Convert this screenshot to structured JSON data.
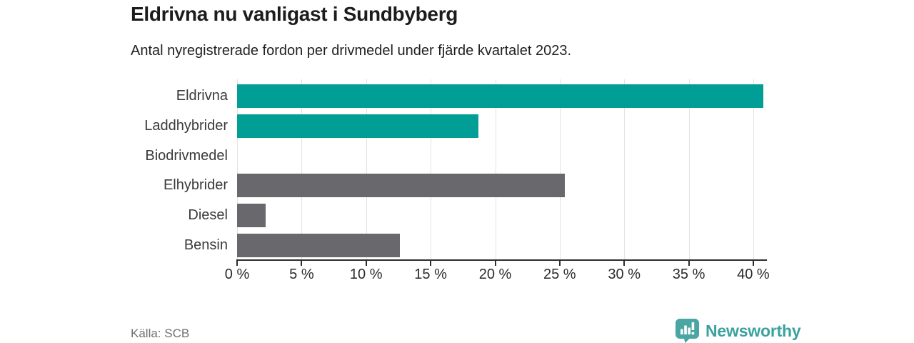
{
  "header": {
    "title": "Eldrivna nu vanligast i Sundbyberg",
    "subtitle": "Antal nyregistrerade fordon per drivmedel under fjärde kvartalet 2023."
  },
  "chart_data": {
    "type": "bar",
    "orientation": "horizontal",
    "title": "Eldrivna nu vanligast i Sundbyberg",
    "subtitle": "Antal nyregistrerade fordon per drivmedel under fjärde kvartalet 2023.",
    "categories": [
      "Eldrivna",
      "Laddhybrider",
      "Biodrivmedel",
      "Elhybrider",
      "Diesel",
      "Bensin"
    ],
    "values": [
      40.8,
      18.7,
      0,
      25.4,
      2.2,
      12.6
    ],
    "unit": "%",
    "xlabel": "",
    "ylabel": "",
    "xlim": [
      0,
      41
    ],
    "tick_values": [
      0,
      5,
      10,
      15,
      20,
      25,
      30,
      35,
      40
    ],
    "tick_labels": [
      "0 %",
      "5 %",
      "10 %",
      "15 %",
      "20 %",
      "25 %",
      "30 %",
      "35 %",
      "40 %"
    ],
    "grid": true,
    "legend": "none",
    "bar_colors": [
      "#009e95",
      "#009e95",
      "#009e95",
      "#69696d",
      "#69696d",
      "#69696d"
    ]
  },
  "colors": {
    "accent_teal": "#009e95",
    "bar_gray": "#69696d",
    "gridline": "#e2e2e2",
    "axis": "#2d2d2d",
    "logo_teal": "#4aa6a3",
    "logo_text_teal": "#3ba19e"
  },
  "footer": {
    "source": "Källa: SCB",
    "brand": "Newsworthy"
  }
}
